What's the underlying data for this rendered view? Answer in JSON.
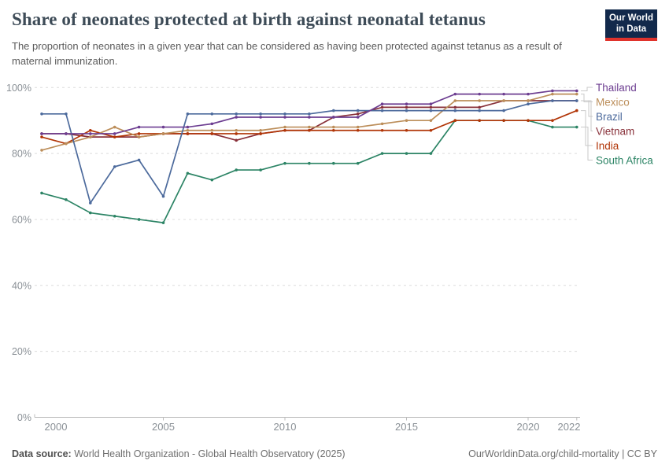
{
  "header": {
    "title": "Share of neonates protected at birth against neonatal tetanus",
    "subtitle": "The proportion of neonates in a given year that can be considered as having been protected against tetanus as a result of maternal immunization.",
    "logo": {
      "line1": "Our World",
      "line2": "in Data"
    }
  },
  "chart_data": {
    "type": "line",
    "title": "Share of neonates protected at birth against neonatal tetanus",
    "unit": "%",
    "xlabel": "",
    "ylabel": "",
    "ylim": [
      0,
      100
    ],
    "yticks": [
      0,
      20,
      40,
      60,
      80,
      100
    ],
    "xticks": [
      2000,
      2005,
      2010,
      2015,
      2020,
      2022
    ],
    "grid": true,
    "legend_position": "right",
    "x": [
      2000,
      2001,
      2002,
      2003,
      2004,
      2005,
      2006,
      2007,
      2008,
      2009,
      2010,
      2011,
      2012,
      2013,
      2014,
      2015,
      2016,
      2017,
      2018,
      2019,
      2020,
      2021,
      2022
    ],
    "series": [
      {
        "name": "Thailand",
        "color": "#6D3E91",
        "values": [
          86,
          86,
          86,
          86,
          88,
          88,
          88,
          89,
          91,
          91,
          91,
          91,
          91,
          91,
          95,
          95,
          95,
          98,
          98,
          98,
          98,
          99,
          99
        ]
      },
      {
        "name": "Mexico",
        "color": "#BC8E5A",
        "values": [
          81,
          83,
          85,
          88,
          85,
          86,
          87,
          87,
          87,
          87,
          88,
          88,
          88,
          88,
          89,
          90,
          90,
          96,
          96,
          96,
          96,
          98,
          98
        ]
      },
      {
        "name": "Brazil",
        "color": "#4C6A9C",
        "values": [
          92,
          92,
          65,
          76,
          78,
          67,
          92,
          92,
          92,
          92,
          92,
          92,
          93,
          93,
          93,
          93,
          93,
          93,
          93,
          93,
          95,
          96,
          96
        ]
      },
      {
        "name": "Vietnam",
        "color": "#883039",
        "values": [
          86,
          86,
          85,
          85,
          85,
          86,
          86,
          86,
          84,
          86,
          87,
          87,
          91,
          92,
          94,
          94,
          94,
          94,
          94,
          96,
          96,
          96,
          96
        ]
      },
      {
        "name": "India",
        "color": "#B13507",
        "values": [
          85,
          83,
          87,
          85,
          86,
          86,
          86,
          86,
          86,
          86,
          87,
          87,
          87,
          87,
          87,
          87,
          87,
          90,
          90,
          90,
          90,
          90,
          93
        ]
      },
      {
        "name": "South Africa",
        "color": "#2C8465",
        "values": [
          68,
          66,
          62,
          61,
          60,
          59,
          74,
          72,
          75,
          75,
          77,
          77,
          77,
          77,
          80,
          80,
          80,
          90,
          90,
          90,
          90,
          88,
          88
        ]
      }
    ]
  },
  "footer": {
    "datasource_label": "Data source:",
    "datasource_text": " World Health Organization - Global Health Observatory (2025)",
    "attribution": "OurWorldinData.org/child-mortality | CC BY"
  }
}
